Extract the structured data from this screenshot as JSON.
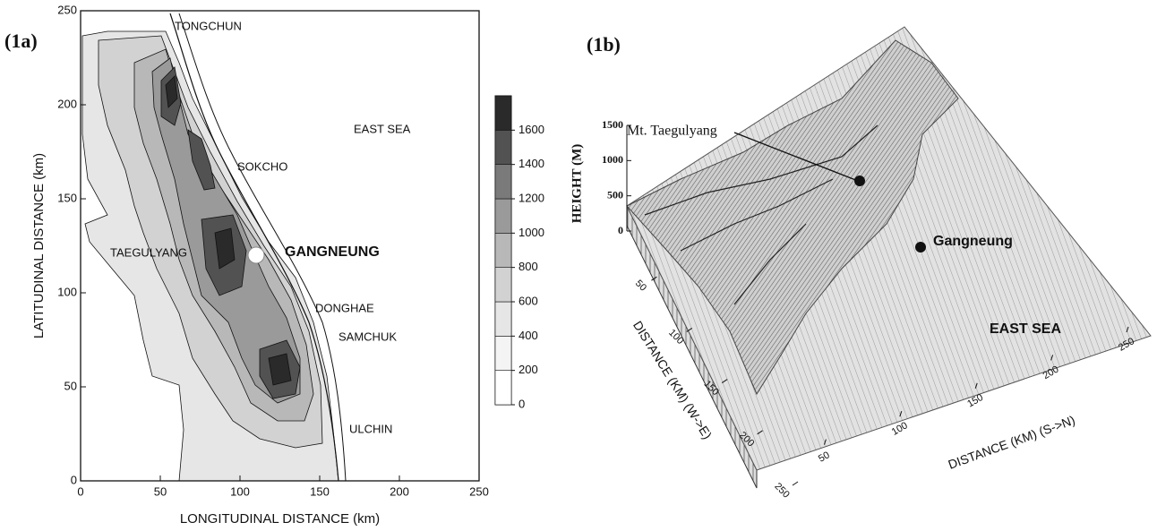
{
  "chart_data": [
    {
      "type": "contour",
      "panel_label": "(1a)",
      "xlabel": "LONGITUDINAL DISTANCE (km)",
      "ylabel": "LATITUDINAL DISTANCE (km)",
      "xlim": [
        0,
        250
      ],
      "ylim": [
        0,
        250
      ],
      "xticks": [
        0,
        50,
        100,
        150,
        200,
        250
      ],
      "yticks": [
        0,
        50,
        100,
        150,
        200,
        250
      ],
      "colorbar": {
        "lim": [
          0,
          1800
        ],
        "ticks": [
          0,
          200,
          400,
          600,
          800,
          1000,
          1200,
          1400,
          1600
        ],
        "colors": [
          "#ffffff",
          "#f4f4f4",
          "#e6e6e6",
          "#d2d2d2",
          "#b8b8b8",
          "#9a9a9a",
          "#7a7a7a",
          "#525252",
          "#2a2a2a"
        ]
      },
      "annotations": [
        "TONGCHUN",
        "EAST SEA",
        "SOKCHO",
        "TAEGULYANG",
        "GANGNEUNG",
        "DONGHAE",
        "SAMCHUK",
        "ULCHIN"
      ]
    },
    {
      "type": "surface",
      "panel_label": "(1b)",
      "zlabel": "HEIGHT (M)",
      "zlim": [
        0,
        1500
      ],
      "zticks": [
        0,
        500,
        1000,
        1500
      ],
      "xlabel": "DISTANCE (KM) (W->E)",
      "xlim": [
        0,
        250
      ],
      "xticks": [
        50,
        100,
        150,
        200,
        250
      ],
      "ylabel": "DISTANCE (KM) (S->N)",
      "ylim": [
        0,
        250
      ],
      "yticks": [
        50,
        100,
        150,
        200,
        250
      ],
      "annotations": [
        "Mt. Taegulyang",
        "Gangneung",
        "EAST SEA"
      ]
    }
  ]
}
